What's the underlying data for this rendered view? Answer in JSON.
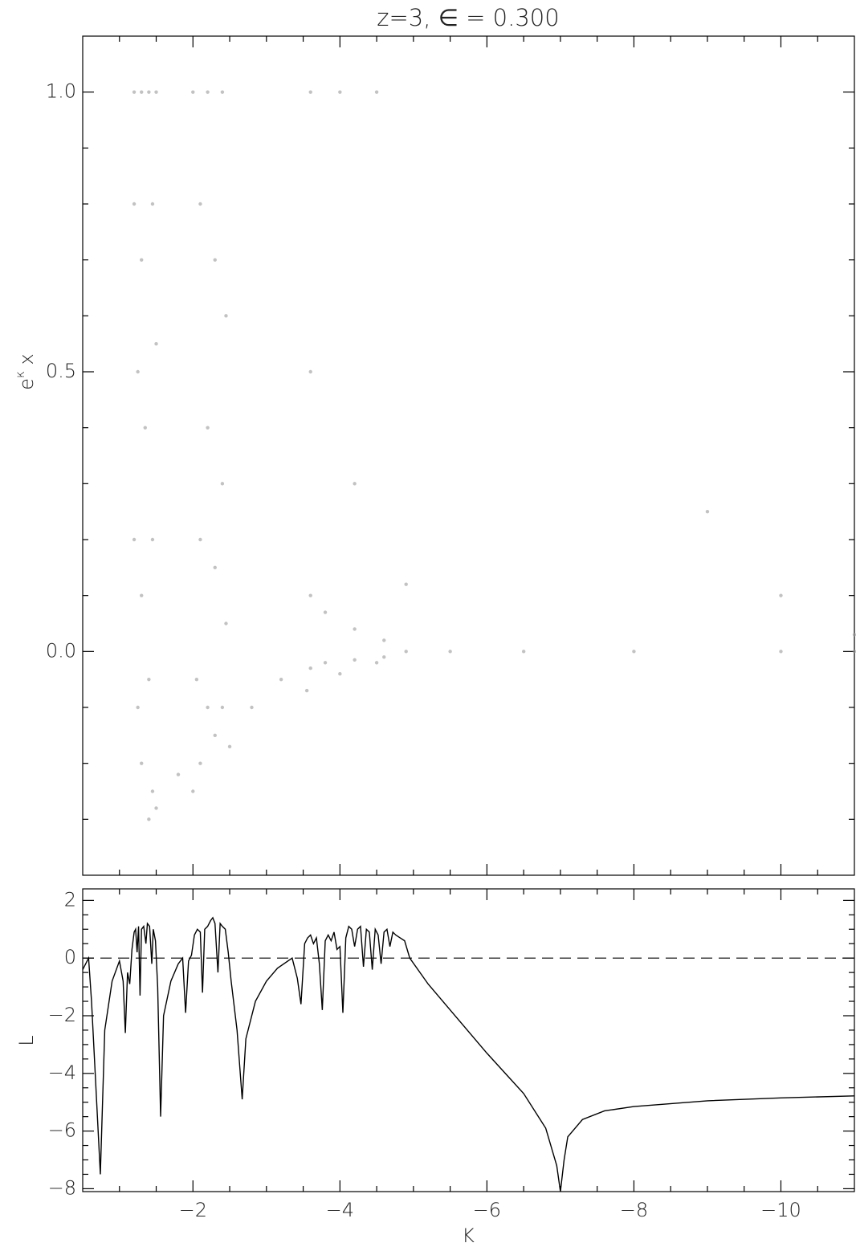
{
  "chart_data": [
    {
      "type": "scatter",
      "title": "z=3, ∈ = 0.300",
      "y_label": {
        "base": "e",
        "superscript": "κ",
        "suffix": " x"
      },
      "xlim": [
        -0.5,
        -11
      ],
      "xticks": [
        -2,
        -4,
        -6,
        -8,
        -10
      ],
      "show_xtick_labels": false,
      "xminorticks": [
        -1,
        -1.5,
        -2.5,
        -3,
        -3.5,
        -4.5,
        -5,
        -5.5,
        -6.5,
        -7,
        -7.5,
        -8.5,
        -9,
        -9.5,
        -10.5
      ],
      "ylim": [
        -0.4,
        1.1
      ],
      "yticks": [
        {
          "value": 0,
          "label": "0.0"
        },
        {
          "value": 0.5,
          "label": "0.5"
        },
        {
          "value": 1,
          "label": "1.0"
        }
      ],
      "yminorticks": [
        -0.3,
        -0.2,
        -0.1,
        0.1,
        0.2,
        0.3,
        0.4,
        0.6,
        0.7,
        0.8,
        0.9
      ],
      "series": [
        {
          "color": "#9a9a9a",
          "x": [
            -1.2,
            -1.3,
            -1.4,
            -1.5,
            -1.2,
            -1.3,
            -1.45,
            -1.25,
            -1.35,
            -1.5,
            -1.2,
            -1.3,
            -1.45,
            -1.25,
            -1.4,
            -1.3,
            -1.45,
            -1.4,
            -1.5,
            -2.0,
            -2.2,
            -2.4,
            -2.1,
            -2.3,
            -2.45,
            -2.2,
            -2.4,
            -2.1,
            -2.3,
            -2.45,
            -2.05,
            -2.2,
            -2.4,
            -2.1,
            -2.3,
            -2.0,
            -2.5,
            -3.6,
            -4.0,
            -4.5,
            -3.6,
            -4.2,
            -3.6,
            -3.8,
            -4.2,
            -4.6,
            -4.9,
            -4.9,
            -3.6,
            -3.8,
            -4.2,
            -4.6,
            -3.55,
            -4.0,
            -4.5,
            -5.5,
            -6.5,
            -8,
            -10,
            -11,
            -9,
            -10,
            -11,
            -2.8,
            -3.2,
            -1.8
          ],
          "y": [
            1.0,
            1.0,
            1.0,
            1.0,
            0.8,
            0.7,
            0.8,
            0.5,
            0.4,
            0.55,
            0.2,
            0.1,
            0.2,
            -0.1,
            -0.05,
            -0.2,
            -0.25,
            -0.3,
            -0.28,
            1.0,
            1.0,
            1.0,
            0.8,
            0.7,
            0.6,
            0.4,
            0.3,
            0.2,
            0.15,
            0.05,
            -0.05,
            -0.1,
            -0.1,
            -0.2,
            -0.15,
            -0.25,
            -0.17,
            1.0,
            1.0,
            1.0,
            0.5,
            0.3,
            0.1,
            0.07,
            0.04,
            0.02,
            0.12,
            0.0,
            -0.03,
            -0.02,
            -0.015,
            -0.01,
            -0.07,
            -0.04,
            -0.02,
            0,
            0,
            0,
            0,
            0,
            0.25,
            0.1,
            0.03,
            -0.1,
            -0.05,
            -0.22
          ]
        }
      ]
    },
    {
      "type": "line",
      "x_label": "K",
      "y_label": "L",
      "color": "#000000",
      "xlim": [
        -0.5,
        -11
      ],
      "xticks": [
        {
          "value": -2,
          "label": "−2"
        },
        {
          "value": -4,
          "label": "−4"
        },
        {
          "value": -6,
          "label": "−6"
        },
        {
          "value": -8,
          "label": "−8"
        },
        {
          "value": -10,
          "label": "−10"
        }
      ],
      "show_xtick_labels": true,
      "xminorticks": [
        -1,
        -1.5,
        -2.5,
        -3,
        -3.5,
        -4.5,
        -5,
        -5.5,
        -6.5,
        -7,
        -7.5,
        -8.5,
        -9,
        -9.5,
        -10.5
      ],
      "ylim": [
        -8.1,
        2.4
      ],
      "yticks": [
        {
          "value": -8,
          "label": "−8"
        },
        {
          "value": -6,
          "label": "−6"
        },
        {
          "value": -4,
          "label": "−4"
        },
        {
          "value": -2,
          "label": "−2"
        },
        0,
        2
      ],
      "yminorticks": [
        -7.5,
        -7,
        -6.5,
        -5.5,
        -5,
        -4.5,
        -3.5,
        -3,
        -2.5,
        -1.5,
        -1,
        -0.5,
        0.5,
        1,
        1.5
      ],
      "hline": 0,
      "x": [
        -0.5,
        -0.58,
        -0.62,
        -0.74,
        -0.8,
        -0.9,
        -1.0,
        -1.05,
        -1.08,
        -1.11,
        -1.14,
        -1.17,
        -1.2,
        -1.22,
        -1.24,
        -1.26,
        -1.28,
        -1.3,
        -1.33,
        -1.36,
        -1.38,
        -1.41,
        -1.44,
        -1.46,
        -1.49,
        -1.52,
        -1.56,
        -1.6,
        -1.7,
        -1.8,
        -1.86,
        -1.9,
        -1.94,
        -1.98,
        -2.02,
        -2.06,
        -2.1,
        -2.13,
        -2.16,
        -2.2,
        -2.24,
        -2.27,
        -2.3,
        -2.34,
        -2.37,
        -2.4,
        -2.44,
        -2.48,
        -2.52,
        -2.6,
        -2.67,
        -2.72,
        -2.85,
        -3.0,
        -3.15,
        -3.35,
        -3.42,
        -3.47,
        -3.52,
        -3.56,
        -3.6,
        -3.64,
        -3.68,
        -3.72,
        -3.76,
        -3.8,
        -3.84,
        -3.88,
        -3.92,
        -3.96,
        -4.0,
        -4.04,
        -4.08,
        -4.12,
        -4.16,
        -4.2,
        -4.24,
        -4.28,
        -4.32,
        -4.36,
        -4.4,
        -4.44,
        -4.48,
        -4.52,
        -4.56,
        -4.6,
        -4.64,
        -4.68,
        -4.72,
        -4.76,
        -4.82,
        -4.88,
        -4.95,
        -5.2,
        -5.5,
        -6.0,
        -6.5,
        -6.8,
        -6.95,
        -7.0,
        -7.05,
        -7.1,
        -7.3,
        -7.6,
        -8.0,
        -9.0,
        -10.0,
        -11.0
      ],
      "values": [
        -0.4,
        0,
        -1.5,
        -7.5,
        -2.5,
        -0.8,
        -0.1,
        -0.8,
        -2.6,
        -0.5,
        -0.9,
        0.3,
        0.9,
        1.0,
        0.2,
        1.1,
        -1.3,
        1.0,
        1.1,
        0.5,
        1.2,
        1.1,
        -0.2,
        1.0,
        0.6,
        -1.0,
        -5.5,
        -2.0,
        -0.8,
        -0.2,
        0,
        -1.9,
        -0.1,
        0.1,
        0.8,
        1.0,
        0.9,
        -1.2,
        1.0,
        1.1,
        1.3,
        1.4,
        1.2,
        -0.5,
        1.2,
        1.1,
        1.0,
        0.2,
        -0.8,
        -2.5,
        -4.9,
        -2.8,
        -1.5,
        -0.8,
        -0.35,
        0,
        -0.7,
        -1.6,
        0.5,
        0.7,
        0.8,
        0.5,
        0.7,
        -0.2,
        -1.8,
        0.6,
        0.8,
        0.6,
        0.9,
        0.3,
        0.4,
        -1.9,
        0.7,
        1.1,
        1.0,
        0.4,
        1.0,
        1.1,
        -0.3,
        1.0,
        0.9,
        -0.4,
        1.0,
        0.8,
        -0.2,
        0.9,
        1.0,
        0.4,
        0.9,
        0.8,
        0.7,
        0.6,
        0,
        -0.9,
        -1.8,
        -3.3,
        -4.7,
        -5.9,
        -7.2,
        -8.1,
        -7.0,
        -6.2,
        -5.6,
        -5.3,
        -5.15,
        -4.95,
        -4.85,
        -4.78
      ]
    }
  ]
}
